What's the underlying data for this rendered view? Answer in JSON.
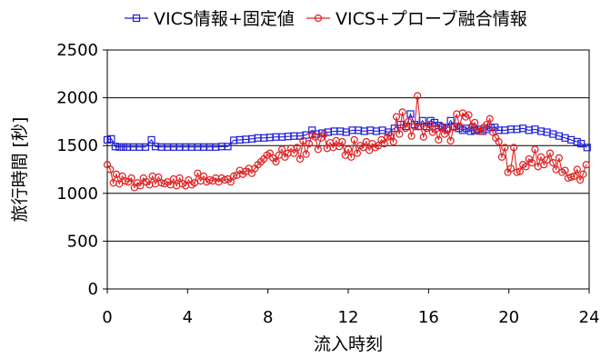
{
  "chart_data": {
    "type": "line",
    "title": "",
    "xlabel": "流入時刻",
    "ylabel": "旅行時間 [秒]",
    "xlim": [
      0,
      24
    ],
    "ylim": [
      0,
      2500
    ],
    "xticks": [
      "0",
      "4",
      "8",
      "12",
      "16",
      "20",
      "24"
    ],
    "yticks": [
      "0",
      "500",
      "1000",
      "1500",
      "2000",
      "2500"
    ],
    "grid": "horizontal",
    "legend_position": "top",
    "series": [
      {
        "name": "VICS情報+固定値",
        "color": "#1f1fd8",
        "marker": "square",
        "x": [
          0,
          0.2,
          0.4,
          0.6,
          0.8,
          1.0,
          1.3,
          1.6,
          1.9,
          2.2,
          2.4,
          2.7,
          3.0,
          3.3,
          3.6,
          3.9,
          4.2,
          4.5,
          4.8,
          5.1,
          5.4,
          5.7,
          6.0,
          6.3,
          6.6,
          6.9,
          7.2,
          7.5,
          7.8,
          8.1,
          8.4,
          8.7,
          9.0,
          9.3,
          9.6,
          9.9,
          10.2,
          10.4,
          10.7,
          11.0,
          11.3,
          11.6,
          11.9,
          12.2,
          12.5,
          12.8,
          13.1,
          13.4,
          13.7,
          14.0,
          14.3,
          14.6,
          14.9,
          15.1,
          15.3,
          15.5,
          15.7,
          15.9,
          16.1,
          16.3,
          16.5,
          16.7,
          16.9,
          17.1,
          17.3,
          17.5,
          17.7,
          17.9,
          18.1,
          18.3,
          18.5,
          18.7,
          18.9,
          19.1,
          19.3,
          19.5,
          19.8,
          20.1,
          20.4,
          20.7,
          21.0,
          21.3,
          21.6,
          21.9,
          22.2,
          22.5,
          22.8,
          23.1,
          23.4,
          23.6,
          23.9
        ],
        "y": [
          1560,
          1570,
          1490,
          1485,
          1485,
          1485,
          1485,
          1485,
          1485,
          1560,
          1490,
          1485,
          1485,
          1485,
          1485,
          1485,
          1485,
          1485,
          1485,
          1485,
          1485,
          1490,
          1490,
          1555,
          1560,
          1565,
          1570,
          1580,
          1580,
          1585,
          1590,
          1590,
          1595,
          1600,
          1600,
          1610,
          1660,
          1620,
          1630,
          1640,
          1650,
          1650,
          1640,
          1660,
          1660,
          1650,
          1660,
          1650,
          1660,
          1640,
          1680,
          1720,
          1700,
          1830,
          1720,
          1700,
          1760,
          1700,
          1760,
          1740,
          1710,
          1690,
          1680,
          1760,
          1700,
          1680,
          1660,
          1680,
          1650,
          1660,
          1670,
          1650,
          1670,
          1690,
          1690,
          1660,
          1660,
          1670,
          1670,
          1680,
          1660,
          1670,
          1650,
          1640,
          1620,
          1600,
          1580,
          1560,
          1540,
          1520,
          1480
        ]
      },
      {
        "name": "VICS+プローブ融合情報",
        "color": "#e02020",
        "marker": "circle",
        "x": [
          0,
          0.15,
          0.3,
          0.45,
          0.6,
          0.75,
          0.9,
          1.05,
          1.2,
          1.35,
          1.5,
          1.65,
          1.8,
          1.95,
          2.1,
          2.25,
          2.4,
          2.55,
          2.7,
          2.85,
          3.0,
          3.15,
          3.3,
          3.45,
          3.6,
          3.75,
          3.9,
          4.05,
          4.2,
          4.35,
          4.5,
          4.65,
          4.8,
          4.95,
          5.1,
          5.25,
          5.4,
          5.55,
          5.7,
          5.85,
          6.0,
          6.15,
          6.3,
          6.45,
          6.6,
          6.75,
          6.9,
          7.05,
          7.2,
          7.35,
          7.5,
          7.65,
          7.8,
          7.95,
          8.1,
          8.25,
          8.4,
          8.55,
          8.7,
          8.85,
          9.0,
          9.15,
          9.3,
          9.45,
          9.6,
          9.75,
          9.9,
          10.05,
          10.2,
          10.35,
          10.5,
          10.65,
          10.8,
          10.95,
          11.1,
          11.25,
          11.4,
          11.55,
          11.7,
          11.85,
          12.0,
          12.15,
          12.3,
          12.45,
          12.6,
          12.75,
          12.9,
          13.05,
          13.2,
          13.35,
          13.5,
          13.65,
          13.8,
          13.95,
          14.1,
          14.25,
          14.4,
          14.55,
          14.7,
          14.85,
          15.0,
          15.15,
          15.3,
          15.45,
          15.6,
          15.75,
          15.9,
          16.05,
          16.2,
          16.35,
          16.5,
          16.65,
          16.8,
          16.95,
          17.1,
          17.25,
          17.4,
          17.55,
          17.7,
          17.85,
          18.0,
          18.15,
          18.3,
          18.45,
          18.6,
          18.75,
          18.9,
          19.05,
          19.2,
          19.35,
          19.5,
          19.65,
          19.8,
          19.95,
          20.1,
          20.25,
          20.4,
          20.55,
          20.7,
          20.85,
          21.0,
          21.15,
          21.3,
          21.45,
          21.6,
          21.75,
          21.9,
          22.05,
          22.2,
          22.35,
          22.5,
          22.65,
          22.8,
          22.95,
          23.1,
          23.25,
          23.4,
          23.55,
          23.7,
          23.85
        ],
        "y": [
          1300,
          1250,
          1110,
          1200,
          1100,
          1180,
          1130,
          1120,
          1160,
          1060,
          1110,
          1080,
          1160,
          1120,
          1090,
          1180,
          1100,
          1170,
          1110,
          1100,
          1120,
          1090,
          1150,
          1080,
          1160,
          1100,
          1080,
          1140,
          1090,
          1110,
          1210,
          1130,
          1180,
          1120,
          1140,
          1130,
          1160,
          1120,
          1160,
          1140,
          1150,
          1120,
          1180,
          1190,
          1240,
          1200,
          1230,
          1260,
          1210,
          1260,
          1300,
          1330,
          1360,
          1400,
          1420,
          1370,
          1330,
          1400,
          1460,
          1380,
          1420,
          1470,
          1420,
          1480,
          1360,
          1550,
          1410,
          1520,
          1610,
          1590,
          1460,
          1580,
          1620,
          1470,
          1530,
          1480,
          1550,
          1490,
          1540,
          1400,
          1460,
          1380,
          1560,
          1420,
          1500,
          1480,
          1540,
          1450,
          1520,
          1480,
          1500,
          1560,
          1520,
          1590,
          1600,
          1540,
          1800,
          1620,
          1850,
          1680,
          1750,
          1600,
          1700,
          2020,
          1700,
          1590,
          1680,
          1720,
          1640,
          1670,
          1560,
          1700,
          1620,
          1660,
          1550,
          1690,
          1830,
          1700,
          1840,
          1800,
          1820,
          1700,
          1740,
          1650,
          1650,
          1690,
          1720,
          1780,
          1640,
          1580,
          1540,
          1380,
          1480,
          1220,
          1260,
          1480,
          1220,
          1230,
          1300,
          1280,
          1360,
          1320,
          1460,
          1280,
          1380,
          1300,
          1350,
          1420,
          1320,
          1250,
          1370,
          1220,
          1240,
          1160,
          1170,
          1180,
          1250,
          1140,
          1200,
          1300
        ]
      }
    ]
  }
}
